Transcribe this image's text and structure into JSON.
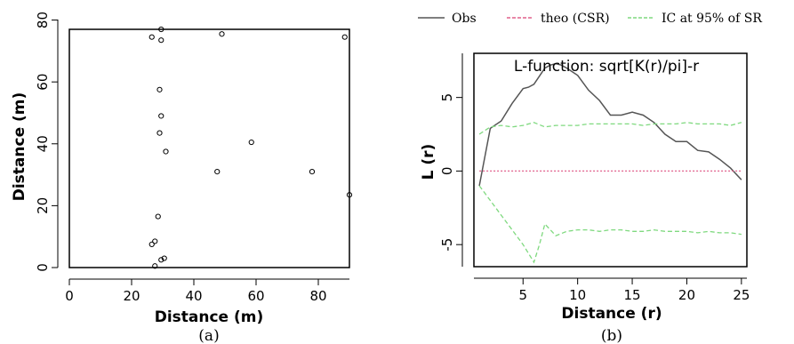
{
  "chart_data": [
    {
      "type": "scatter",
      "caption": "(a)",
      "xlabel": "Distance (m)",
      "ylabel": "Distance (m)",
      "xlim": [
        0,
        90
      ],
      "ylim": [
        0,
        77
      ],
      "xticks": [
        0,
        20,
        40,
        60,
        80
      ],
      "yticks": [
        0,
        20,
        40,
        60,
        80
      ],
      "points": [
        [
          26.5,
          74.5
        ],
        [
          29.5,
          77
        ],
        [
          29.5,
          73.5
        ],
        [
          49,
          75.5
        ],
        [
          88.5,
          74.5
        ],
        [
          29,
          57.5
        ],
        [
          29.5,
          49
        ],
        [
          29,
          43.5
        ],
        [
          58.5,
          40.5
        ],
        [
          31,
          37.5
        ],
        [
          47.5,
          31
        ],
        [
          78,
          31
        ],
        [
          90,
          23.5
        ],
        [
          28.5,
          16.5
        ],
        [
          26.5,
          7.5
        ],
        [
          27.5,
          8.5
        ],
        [
          29.5,
          2.5
        ],
        [
          30.5,
          3
        ],
        [
          27.5,
          0.5
        ]
      ]
    },
    {
      "type": "line",
      "caption": "(b)",
      "title": "L-function: sqrt[K(r)/pi]-r",
      "xlabel": "Distance (r)",
      "ylabel": "L (r)",
      "xlim": [
        0.5,
        25.5
      ],
      "ylim": [
        -6.5,
        8
      ],
      "xticks": [
        5,
        10,
        15,
        20,
        25
      ],
      "yticks": [
        -5,
        0,
        5
      ],
      "legend": [
        {
          "name": "Obs",
          "color": "#555555",
          "style": "solid"
        },
        {
          "name": "theo (CSR)",
          "color": "#e0608c",
          "style": "dashed"
        },
        {
          "name": "IC at 95% of SR",
          "color": "#7fd97f",
          "style": "dashed"
        }
      ],
      "series": [
        {
          "key": "obs",
          "color": "#555555",
          "dash": "",
          "x": [
            1,
            2,
            3,
            4,
            5,
            5.5,
            6,
            7,
            7.5,
            8,
            8.5,
            9,
            10,
            11,
            12,
            13,
            14,
            15,
            16,
            17,
            18,
            19,
            20,
            21,
            22,
            23,
            24,
            25
          ],
          "y": [
            -1,
            2.9,
            3.4,
            4.6,
            5.6,
            5.7,
            5.9,
            7.0,
            7.2,
            7.3,
            7.2,
            7.0,
            6.5,
            5.5,
            4.8,
            3.8,
            3.8,
            4.0,
            3.8,
            3.3,
            2.5,
            2.0,
            2.0,
            1.4,
            1.3,
            0.8,
            0.2,
            -0.6
          ]
        },
        {
          "key": "theo",
          "color": "#e0608c",
          "dash": "2,2",
          "x": [
            1,
            25
          ],
          "y": [
            0,
            0
          ]
        },
        {
          "key": "upper",
          "color": "#7fd97f",
          "dash": "5,3",
          "x": [
            1,
            2,
            3,
            4,
            5,
            6,
            7,
            8,
            9,
            10,
            11,
            12,
            13,
            14,
            15,
            16,
            17,
            18,
            19,
            20,
            21,
            22,
            23,
            24,
            25
          ],
          "y": [
            2.5,
            3.0,
            3.1,
            3.0,
            3.1,
            3.3,
            3.0,
            3.1,
            3.1,
            3.1,
            3.2,
            3.2,
            3.2,
            3.2,
            3.2,
            3.1,
            3.2,
            3.2,
            3.2,
            3.3,
            3.2,
            3.2,
            3.2,
            3.1,
            3.3
          ]
        },
        {
          "key": "lower",
          "color": "#7fd97f",
          "dash": "5,3",
          "x": [
            1,
            2,
            3,
            4,
            5,
            6,
            6.5,
            7,
            7.5,
            8,
            9,
            10,
            11,
            12,
            13,
            14,
            15,
            16,
            17,
            18,
            19,
            20,
            21,
            22,
            23,
            24,
            25
          ],
          "y": [
            -1.0,
            -2.0,
            -3.0,
            -4.0,
            -5.0,
            -6.2,
            -5.0,
            -3.6,
            -4.0,
            -4.4,
            -4.1,
            -4.0,
            -4.0,
            -4.1,
            -4.0,
            -4.0,
            -4.1,
            -4.1,
            -4.0,
            -4.1,
            -4.1,
            -4.1,
            -4.2,
            -4.1,
            -4.2,
            -4.2,
            -4.3
          ]
        }
      ]
    }
  ]
}
